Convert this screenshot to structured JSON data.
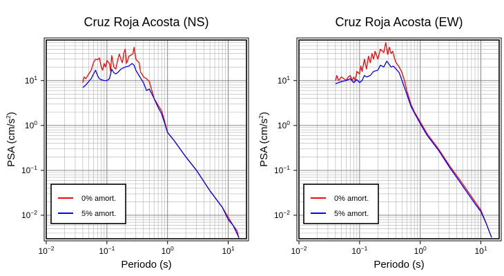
{
  "chart_data": [
    {
      "type": "line",
      "title": "Cruz Roja Acosta (NS)",
      "xlabel": "Periodo (s)",
      "ylabel": "PSA (cm/s",
      "ylabel_sup": "2",
      "ylabel_close": ")",
      "xscale": "log",
      "yscale": "log",
      "xlim": [
        0.01,
        20
      ],
      "ylim": [
        0.003,
        80
      ],
      "grid": true,
      "legend_position": "bottom-left",
      "x_ticks": [
        {
          "value": 0.01,
          "base": "10",
          "exp": "−2"
        },
        {
          "value": 0.1,
          "base": "10",
          "exp": "−1"
        },
        {
          "value": 1,
          "base": "10",
          "exp": "0"
        },
        {
          "value": 10,
          "base": "10",
          "exp": "1"
        }
      ],
      "y_ticks": [
        {
          "value": 0.01,
          "base": "10",
          "exp": "−2"
        },
        {
          "value": 0.1,
          "base": "10",
          "exp": "−1"
        },
        {
          "value": 1,
          "base": "10",
          "exp": "0"
        },
        {
          "value": 10,
          "base": "10",
          "exp": "1"
        }
      ],
      "series": [
        {
          "name": "0% amort.",
          "color": "#ff0000",
          "points": [
            [
              0.04,
              9
            ],
            [
              0.042,
              12
            ],
            [
              0.045,
              11
            ],
            [
              0.05,
              14
            ],
            [
              0.055,
              17
            ],
            [
              0.06,
              25
            ],
            [
              0.065,
              30
            ],
            [
              0.07,
              29
            ],
            [
              0.075,
              32
            ],
            [
              0.08,
              21
            ],
            [
              0.085,
              17
            ],
            [
              0.09,
              24
            ],
            [
              0.095,
              20
            ],
            [
              0.1,
              28
            ],
            [
              0.11,
              24
            ],
            [
              0.115,
              16
            ],
            [
              0.12,
              36
            ],
            [
              0.13,
              20
            ],
            [
              0.14,
              18
            ],
            [
              0.15,
              28
            ],
            [
              0.16,
              39
            ],
            [
              0.17,
              30
            ],
            [
              0.18,
              25
            ],
            [
              0.19,
              41
            ],
            [
              0.2,
              50
            ],
            [
              0.21,
              24
            ],
            [
              0.22,
              28
            ],
            [
              0.23,
              35
            ],
            [
              0.25,
              37
            ],
            [
              0.27,
              40
            ],
            [
              0.28,
              55
            ],
            [
              0.3,
              30
            ],
            [
              0.32,
              27
            ],
            [
              0.34,
              25
            ],
            [
              0.36,
              15
            ],
            [
              0.38,
              14
            ],
            [
              0.4,
              12
            ],
            [
              0.45,
              11
            ],
            [
              0.5,
              9.5
            ],
            [
              0.6,
              4
            ],
            [
              0.7,
              2.8
            ],
            [
              0.8,
              2.1
            ],
            [
              0.9,
              1.2
            ],
            [
              1.0,
              0.7
            ],
            [
              1.3,
              0.45
            ],
            [
              2,
              0.2
            ],
            [
              3,
              0.1
            ],
            [
              5,
              0.035
            ],
            [
              8,
              0.015
            ],
            [
              10,
              0.009
            ],
            [
              12,
              0.006
            ],
            [
              14,
              0.0045
            ],
            [
              15,
              0.003
            ]
          ]
        },
        {
          "name": "5% amort.",
          "color": "#0000ff",
          "points": [
            [
              0.04,
              7
            ],
            [
              0.045,
              8
            ],
            [
              0.05,
              9.5
            ],
            [
              0.055,
              11
            ],
            [
              0.06,
              14
            ],
            [
              0.065,
              17
            ],
            [
              0.07,
              13
            ],
            [
              0.075,
              11
            ],
            [
              0.08,
              10.5
            ],
            [
              0.09,
              10
            ],
            [
              0.1,
              10
            ],
            [
              0.11,
              11
            ],
            [
              0.12,
              18
            ],
            [
              0.13,
              15
            ],
            [
              0.14,
              14
            ],
            [
              0.15,
              15
            ],
            [
              0.17,
              18
            ],
            [
              0.2,
              20
            ],
            [
              0.23,
              21
            ],
            [
              0.26,
              24
            ],
            [
              0.28,
              22
            ],
            [
              0.3,
              17
            ],
            [
              0.35,
              12
            ],
            [
              0.4,
              9
            ],
            [
              0.45,
              6
            ],
            [
              0.5,
              6.5
            ],
            [
              0.6,
              4
            ],
            [
              0.7,
              2.5
            ],
            [
              0.8,
              1.8
            ],
            [
              1.0,
              0.7
            ],
            [
              1.3,
              0.45
            ],
            [
              2,
              0.2
            ],
            [
              3,
              0.1
            ],
            [
              5,
              0.035
            ],
            [
              8,
              0.015
            ],
            [
              10,
              0.008
            ],
            [
              12,
              0.006
            ],
            [
              15,
              0.0032
            ]
          ]
        }
      ]
    },
    {
      "type": "line",
      "title": "Cruz Roja Acosta (EW)",
      "xlabel": "Periodo (s)",
      "ylabel": "PSA (cm/s",
      "ylabel_sup": "2",
      "ylabel_close": ")",
      "xscale": "log",
      "yscale": "log",
      "xlim": [
        0.01,
        20
      ],
      "ylim": [
        0.003,
        80
      ],
      "grid": true,
      "legend_position": "bottom-left",
      "x_ticks": [
        {
          "value": 0.01,
          "base": "10",
          "exp": "−2"
        },
        {
          "value": 0.1,
          "base": "10",
          "exp": "−1"
        },
        {
          "value": 1,
          "base": "10",
          "exp": "0"
        },
        {
          "value": 10,
          "base": "10",
          "exp": "1"
        }
      ],
      "y_ticks": [
        {
          "value": 0.01,
          "base": "10",
          "exp": "−2"
        },
        {
          "value": 0.1,
          "base": "10",
          "exp": "−1"
        },
        {
          "value": 1,
          "base": "10",
          "exp": "0"
        },
        {
          "value": 10,
          "base": "10",
          "exp": "1"
        }
      ],
      "series": [
        {
          "name": "0% amort.",
          "color": "#ff0000",
          "points": [
            [
              0.04,
              10
            ],
            [
              0.042,
              13
            ],
            [
              0.045,
              10
            ],
            [
              0.05,
              12
            ],
            [
              0.055,
              11
            ],
            [
              0.06,
              10
            ],
            [
              0.065,
              12
            ],
            [
              0.07,
              13
            ],
            [
              0.075,
              10
            ],
            [
              0.08,
              12
            ],
            [
              0.085,
              10
            ],
            [
              0.09,
              16
            ],
            [
              0.1,
              14
            ],
            [
              0.105,
              21
            ],
            [
              0.11,
              16
            ],
            [
              0.12,
              30
            ],
            [
              0.13,
              18
            ],
            [
              0.14,
              35
            ],
            [
              0.15,
              25
            ],
            [
              0.16,
              40
            ],
            [
              0.17,
              30
            ],
            [
              0.18,
              45
            ],
            [
              0.2,
              30
            ],
            [
              0.22,
              50
            ],
            [
              0.25,
              42
            ],
            [
              0.27,
              70
            ],
            [
              0.29,
              38
            ],
            [
              0.31,
              55
            ],
            [
              0.33,
              40
            ],
            [
              0.35,
              45
            ],
            [
              0.38,
              30
            ],
            [
              0.4,
              25
            ],
            [
              0.45,
              20
            ],
            [
              0.5,
              15
            ],
            [
              0.55,
              10
            ],
            [
              0.6,
              6
            ],
            [
              0.7,
              3
            ],
            [
              0.8,
              2
            ],
            [
              1.0,
              1.2
            ],
            [
              1.3,
              0.65
            ],
            [
              2,
              0.3
            ],
            [
              3,
              0.13
            ],
            [
              5,
              0.05
            ],
            [
              8,
              0.02
            ],
            [
              10,
              0.013
            ],
            [
              12,
              0.007
            ],
            [
              15,
              0.0032
            ]
          ]
        },
        {
          "name": "5% amort.",
          "color": "#0000ff",
          "points": [
            [
              0.04,
              8.5
            ],
            [
              0.05,
              9.5
            ],
            [
              0.06,
              10
            ],
            [
              0.07,
              11
            ],
            [
              0.08,
              9
            ],
            [
              0.09,
              10.5
            ],
            [
              0.1,
              9
            ],
            [
              0.11,
              10
            ],
            [
              0.12,
              13
            ],
            [
              0.13,
              12
            ],
            [
              0.15,
              13
            ],
            [
              0.17,
              16
            ],
            [
              0.2,
              17
            ],
            [
              0.22,
              22
            ],
            [
              0.25,
              20
            ],
            [
              0.28,
              27
            ],
            [
              0.3,
              24
            ],
            [
              0.33,
              20
            ],
            [
              0.36,
              21
            ],
            [
              0.4,
              18
            ],
            [
              0.45,
              15
            ],
            [
              0.5,
              10
            ],
            [
              0.6,
              5
            ],
            [
              0.7,
              2.7
            ],
            [
              0.8,
              1.9
            ],
            [
              1.0,
              1.1
            ],
            [
              1.3,
              0.6
            ],
            [
              2,
              0.28
            ],
            [
              3,
              0.12
            ],
            [
              5,
              0.045
            ],
            [
              8,
              0.018
            ],
            [
              10,
              0.012
            ],
            [
              12,
              0.007
            ],
            [
              15,
              0.0032
            ]
          ]
        }
      ]
    }
  ]
}
